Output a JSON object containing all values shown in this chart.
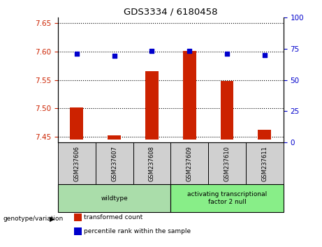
{
  "title": "GDS3334 / 6180458",
  "samples": [
    "GSM237606",
    "GSM237607",
    "GSM237608",
    "GSM237609",
    "GSM237610",
    "GSM237611"
  ],
  "transformed_count": [
    7.502,
    7.452,
    7.565,
    7.601,
    7.548,
    7.462
  ],
  "percentile_rank": [
    71,
    69,
    73,
    73,
    71,
    70
  ],
  "ylim_left": [
    7.44,
    7.66
  ],
  "ylim_right": [
    0,
    100
  ],
  "yticks_left": [
    7.45,
    7.5,
    7.55,
    7.6,
    7.65
  ],
  "yticks_right": [
    0,
    25,
    50,
    75,
    100
  ],
  "bar_color": "#cc2200",
  "scatter_color": "#0000cc",
  "bar_bottom": 7.445,
  "groups": [
    {
      "label": "wildtype",
      "samples": [
        0,
        1,
        2
      ],
      "color": "#aaddaa"
    },
    {
      "label": "activating transcriptional\nfactor 2 null",
      "samples": [
        3,
        4,
        5
      ],
      "color": "#88ee88"
    }
  ],
  "legend_items": [
    {
      "label": "transformed count",
      "color": "#cc2200"
    },
    {
      "label": "percentile rank within the sample",
      "color": "#0000cc"
    }
  ],
  "genotype_label": "genotype/variation",
  "sample_box_color": "#d0d0d0",
  "tick_color_left": "#cc2200",
  "tick_color_right": "#0000cc"
}
